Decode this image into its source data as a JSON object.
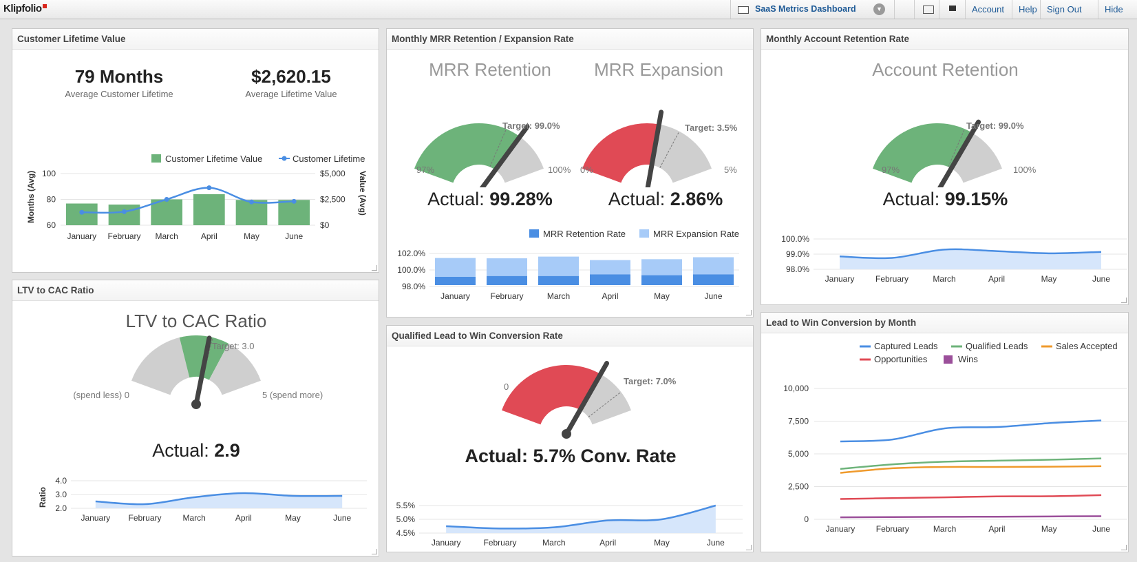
{
  "topbar": {
    "logo": "Klipfolio",
    "dashboard_name": "SaaS Metrics Dashboard",
    "links": {
      "account": "Account",
      "help": "Help",
      "signout": "Sign Out",
      "hide": "Hide"
    }
  },
  "panels": {
    "clv": {
      "title": "Customer Lifetime Value",
      "metric1_value": "79 Months",
      "metric1_label": "Average Customer Lifetime",
      "metric2_value": "$2,620.15",
      "metric2_label": "Average Lifetime Value",
      "legend_bar": "Customer Lifetime Value",
      "legend_line": "Customer Lifetime",
      "ylabel_left": "Months (Avg)",
      "ylabel_right": "Value (Avg)"
    },
    "ltv": {
      "title": "LTV to CAC Ratio",
      "gauge_title": "LTV to CAC Ratio",
      "target": "Target: 3.0",
      "min_label": "(spend less) 0",
      "max_label": "5 (spend more)",
      "actual_label": "Actual:",
      "actual_value": "2.9",
      "ylabel": "Ratio"
    },
    "mrr": {
      "title": "Monthly MRR Retention / Expansion Rate",
      "g1_title": "MRR Retention",
      "g1_target": "Target: 99.0%",
      "g1_min": "97%",
      "g1_max": "100%",
      "g1_actual_label": "Actual:",
      "g1_actual_value": "99.28%",
      "g2_title": "MRR Expansion",
      "g2_target": "Target: 3.5%",
      "g2_min": "0%",
      "g2_max": "5%",
      "g2_actual_label": "Actual:",
      "g2_actual_value": "2.86%",
      "legend1": "MRR Retention Rate",
      "legend2": "MRR Expansion Rate"
    },
    "qual": {
      "title": "Qualified Lead to Win Conversion Rate",
      "target": "Target: 7.0%",
      "min_label": "0",
      "actual": "Actual: 5.7% Conv. Rate"
    },
    "acct": {
      "title": "Monthly Account Retention Rate",
      "gauge_title": "Account Retention",
      "target": "Target: 99.0%",
      "min_label": "97%",
      "max_label": "100%",
      "actual_label": "Actual:",
      "actual_value": "99.15%"
    },
    "lead": {
      "title": "Lead to Win Conversion by Month"
    }
  },
  "colors": {
    "green": "#6db37a",
    "red": "#e04a55",
    "gray": "#cfcfcf",
    "blue": "#4a8ee3",
    "light_blue": "#a7cbf8",
    "bar_dark": "#4a8ee3",
    "orange": "#ef9a2c",
    "purple": "#9b4f9a"
  },
  "chart_data": [
    {
      "id": "clv",
      "type": "bar",
      "categories": [
        "January",
        "February",
        "March",
        "April",
        "May",
        "June"
      ],
      "series": [
        {
          "name": "Customer Lifetime Value",
          "type": "bar",
          "axis": "right",
          "values": [
            2100,
            2000,
            2500,
            3000,
            2450,
            2450
          ]
        },
        {
          "name": "Customer Lifetime",
          "type": "line",
          "axis": "left",
          "values": [
            70,
            70.5,
            80,
            89,
            78,
            78.5
          ]
        }
      ],
      "ylabel": "Months (Avg)",
      "ylabel_right": "Value (Avg)",
      "yticks": [
        "100",
        "80",
        "60"
      ],
      "yticks_right": [
        "$5,000",
        "$2,500",
        "$0"
      ],
      "ylim": [
        60,
        100
      ],
      "ylim_right": [
        0,
        5000
      ]
    },
    {
      "id": "ltv",
      "type": "area",
      "categories": [
        "January",
        "February",
        "March",
        "April",
        "May",
        "June"
      ],
      "values": [
        2.5,
        2.3,
        2.8,
        3.1,
        2.9,
        2.9
      ],
      "yticks": [
        "4.0",
        "3.0",
        "2.0"
      ],
      "ylim": [
        2,
        4
      ],
      "ylabel": "Ratio"
    },
    {
      "id": "mrr",
      "type": "bar",
      "categories": [
        "January",
        "February",
        "March",
        "April",
        "May",
        "June"
      ],
      "series": [
        {
          "name": "MRR Retention Rate",
          "values": [
            99.0,
            99.1,
            99.1,
            99.3,
            99.2,
            99.3
          ]
        },
        {
          "name": "MRR Expansion Rate",
          "values": [
            3.3,
            3.1,
            3.4,
            2.5,
            2.8,
            3.0
          ]
        }
      ],
      "yticks": [
        "102.0%",
        "100.0%",
        "98.0%"
      ],
      "ylim": [
        98,
        102
      ]
    },
    {
      "id": "qual",
      "type": "area",
      "categories": [
        "January",
        "February",
        "March",
        "April",
        "May",
        "June"
      ],
      "values": [
        4.8,
        4.7,
        4.75,
        5.05,
        5.1,
        5.7
      ],
      "yticks": [
        "5.5%",
        "5.0%",
        "4.5%"
      ],
      "ylim": [
        4.5,
        5.7
      ]
    },
    {
      "id": "acct",
      "type": "area",
      "categories": [
        "January",
        "February",
        "March",
        "April",
        "May",
        "June"
      ],
      "values": [
        98.85,
        98.75,
        99.3,
        99.2,
        99.05,
        99.15
      ],
      "yticks": [
        "100.0%",
        "99.0%",
        "98.0%"
      ],
      "ylim": [
        98,
        100
      ]
    },
    {
      "id": "lead",
      "type": "line",
      "categories": [
        "January",
        "February",
        "March",
        "April",
        "May",
        "June"
      ],
      "series": [
        {
          "name": "Captured Leads",
          "color": "#4a8ee3",
          "values": [
            5950,
            6100,
            6950,
            7050,
            7350,
            7550
          ]
        },
        {
          "name": "Qualified Leads",
          "color": "#6db37a",
          "values": [
            3850,
            4200,
            4400,
            4480,
            4550,
            4650
          ]
        },
        {
          "name": "Sales Accepted",
          "color": "#ef9a2c",
          "values": [
            3550,
            3900,
            4000,
            4000,
            4020,
            4060
          ]
        },
        {
          "name": "Opportunities",
          "color": "#e04a55",
          "values": [
            1550,
            1620,
            1680,
            1750,
            1760,
            1850
          ]
        },
        {
          "name": "Wins",
          "color": "#9b4f9a",
          "values": [
            150,
            170,
            190,
            200,
            220,
            240
          ]
        }
      ],
      "yticks": [
        "10,000",
        "7,500",
        "5,000",
        "2,500",
        "0"
      ],
      "ylim": [
        0,
        10000
      ]
    }
  ]
}
